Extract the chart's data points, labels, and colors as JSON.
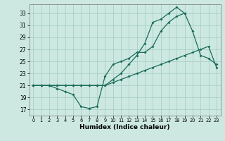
{
  "xlabel": "Humidex (Indice chaleur)",
  "bg_color": "#cce8e0",
  "grid_color": "#aacfc8",
  "line_color": "#1a6b5a",
  "x_ticks": [
    0,
    1,
    2,
    3,
    4,
    5,
    6,
    7,
    8,
    9,
    10,
    11,
    12,
    13,
    14,
    15,
    16,
    17,
    18,
    19,
    20,
    21,
    22,
    23
  ],
  "y_ticks": [
    17,
    19,
    21,
    23,
    25,
    27,
    29,
    31,
    33
  ],
  "xlim": [
    -0.5,
    23.5
  ],
  "ylim": [
    16.0,
    34.5
  ],
  "line1_x": [
    0,
    1,
    2,
    3,
    4,
    5,
    6,
    7,
    8,
    9,
    10,
    11,
    12,
    13,
    14,
    15,
    16,
    17,
    18,
    19
  ],
  "line1_y": [
    21,
    21,
    21,
    21,
    21,
    21,
    21,
    21,
    21,
    21,
    22,
    23,
    24.5,
    26,
    28,
    31.5,
    32,
    33,
    34,
    33
  ],
  "line2_x": [
    0,
    1,
    2,
    3,
    4,
    5,
    6,
    7,
    8,
    9,
    10,
    11,
    12,
    13,
    14,
    15,
    16,
    17,
    18,
    19,
    20,
    21,
    22,
    23
  ],
  "line2_y": [
    21,
    21,
    21,
    20.5,
    20,
    19.5,
    17.5,
    17.2,
    17.5,
    22.5,
    24.5,
    25,
    25.5,
    26.5,
    26.5,
    27.5,
    30,
    31.5,
    32.5,
    33,
    30,
    26,
    25.5,
    24.5
  ],
  "line3_x": [
    0,
    1,
    2,
    3,
    4,
    5,
    6,
    7,
    8,
    9,
    10,
    11,
    12,
    13,
    14,
    15,
    16,
    17,
    18,
    19,
    20,
    21,
    22,
    23
  ],
  "line3_y": [
    21,
    21,
    21,
    21,
    21,
    21,
    21,
    21,
    21,
    21,
    21.5,
    22,
    22.5,
    23,
    23.5,
    24,
    24.5,
    25,
    25.5,
    26,
    26.5,
    27,
    27.5,
    24
  ],
  "tick_fontsize": 5.5,
  "xlabel_fontsize": 6.5,
  "marker_size": 2.0,
  "line_width": 0.9
}
